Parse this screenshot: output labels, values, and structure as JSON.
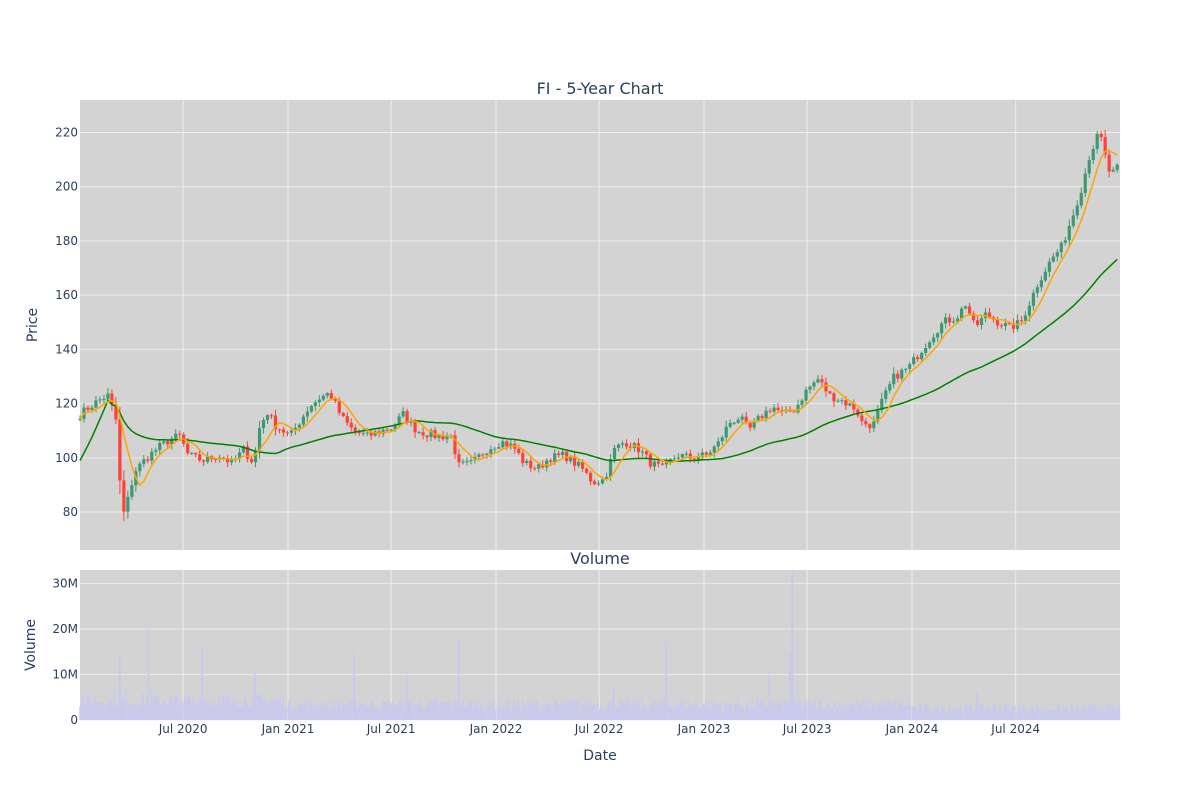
{
  "chart_data": {
    "type": "candlestick",
    "title": "FI - 5-Year Chart",
    "subplot_title": "Volume",
    "xlabel": "Date",
    "price_axis": {
      "label": "Price",
      "ticks": [
        80,
        100,
        120,
        140,
        160,
        180,
        200,
        220
      ],
      "range": [
        66,
        232
      ]
    },
    "volume_axis": {
      "label": "Volume",
      "ticks": [
        0,
        10000000,
        20000000,
        30000000
      ],
      "tick_labels": [
        "0",
        "10M",
        "20M",
        "30M"
      ],
      "range": [
        0,
        33000000
      ]
    },
    "x_ticks": [
      "Jul 2020",
      "Jan 2021",
      "Jul 2021",
      "Jan 2022",
      "Jul 2022",
      "Jan 2023",
      "Jul 2023",
      "Jan 2024",
      "Jul 2024"
    ],
    "x_tick_dates": [
      "2020-07-01",
      "2021-01-01",
      "2021-07-01",
      "2022-01-01",
      "2022-07-01",
      "2023-01-01",
      "2023-07-01",
      "2024-01-01",
      "2024-07-01"
    ],
    "x_range": [
      "2020-01-02",
      "2024-12-31"
    ],
    "grid": true,
    "legend": "none",
    "colors": {
      "up": "#3d9970",
      "down": "#ff4136",
      "ma_short": "#ffa500",
      "ma_long": "#008000",
      "volume": "#c8c8f0",
      "plot_bg": "#d3d3d3",
      "grid": "#ececec"
    },
    "price_path": [
      [
        "2020-01-02",
        116
      ],
      [
        "2020-01-20",
        119
      ],
      [
        "2020-02-10",
        122
      ],
      [
        "2020-02-21",
        123
      ],
      [
        "2020-03-05",
        114
      ],
      [
        "2020-03-16",
        78
      ],
      [
        "2020-03-23",
        82
      ],
      [
        "2020-04-07",
        95
      ],
      [
        "2020-04-28",
        100
      ],
      [
        "2020-05-20",
        104
      ],
      [
        "2020-06-10",
        107
      ],
      [
        "2020-06-25",
        108
      ],
      [
        "2020-07-10",
        101
      ],
      [
        "2020-08-05",
        99
      ],
      [
        "2020-09-01",
        101
      ],
      [
        "2020-09-25",
        98
      ],
      [
        "2020-10-15",
        103
      ],
      [
        "2020-11-02",
        98
      ],
      [
        "2020-11-10",
        110
      ],
      [
        "2020-11-25",
        117
      ],
      [
        "2020-12-10",
        112
      ],
      [
        "2021-01-05",
        108
      ],
      [
        "2021-01-20",
        113
      ],
      [
        "2021-02-08",
        119
      ],
      [
        "2021-02-25",
        122
      ],
      [
        "2021-03-15",
        124
      ],
      [
        "2021-04-05",
        115
      ],
      [
        "2021-04-25",
        110
      ],
      [
        "2021-05-20",
        108
      ],
      [
        "2021-06-15",
        110
      ],
      [
        "2021-07-01",
        111
      ],
      [
        "2021-07-22",
        116
      ],
      [
        "2021-08-15",
        110
      ],
      [
        "2021-09-20",
        108
      ],
      [
        "2021-10-15",
        108
      ],
      [
        "2021-10-27",
        97
      ],
      [
        "2021-11-20",
        98
      ],
      [
        "2021-12-15",
        103
      ],
      [
        "2022-01-10",
        106
      ],
      [
        "2022-02-01",
        104
      ],
      [
        "2022-02-20",
        98
      ],
      [
        "2022-03-15",
        96
      ],
      [
        "2022-04-05",
        100
      ],
      [
        "2022-05-01",
        101
      ],
      [
        "2022-06-01",
        96
      ],
      [
        "2022-06-20",
        91
      ],
      [
        "2022-07-10",
        92
      ],
      [
        "2022-07-28",
        103
      ],
      [
        "2022-08-15",
        106
      ],
      [
        "2022-09-10",
        103
      ],
      [
        "2022-09-30",
        98
      ],
      [
        "2022-10-20",
        96
      ],
      [
        "2022-11-15",
        101
      ],
      [
        "2022-12-10",
        100
      ],
      [
        "2023-01-05",
        101
      ],
      [
        "2023-01-25",
        105
      ],
      [
        "2023-02-15",
        113
      ],
      [
        "2023-03-05",
        115
      ],
      [
        "2023-03-20",
        110
      ],
      [
        "2023-04-10",
        115
      ],
      [
        "2023-05-01",
        119
      ],
      [
        "2023-05-20",
        116
      ],
      [
        "2023-06-10",
        118
      ],
      [
        "2023-06-30",
        125
      ],
      [
        "2023-07-20",
        129
      ],
      [
        "2023-08-10",
        123
      ],
      [
        "2023-09-01",
        121
      ],
      [
        "2023-09-25",
        118
      ],
      [
        "2023-10-05",
        113
      ],
      [
        "2023-10-25",
        112
      ],
      [
        "2023-11-10",
        121
      ],
      [
        "2023-12-01",
        130
      ],
      [
        "2023-12-25",
        133
      ],
      [
        "2024-01-15",
        139
      ],
      [
        "2024-02-05",
        145
      ],
      [
        "2024-02-25",
        150
      ],
      [
        "2024-03-20",
        152
      ],
      [
        "2024-04-05",
        157
      ],
      [
        "2024-04-20",
        148
      ],
      [
        "2024-05-10",
        153
      ],
      [
        "2024-06-01",
        150
      ],
      [
        "2024-06-20",
        148
      ],
      [
        "2024-07-10",
        150
      ],
      [
        "2024-07-25",
        157
      ],
      [
        "2024-08-10",
        165
      ],
      [
        "2024-09-01",
        173
      ],
      [
        "2024-09-20",
        178
      ],
      [
        "2024-10-10",
        190
      ],
      [
        "2024-10-25",
        200
      ],
      [
        "2024-11-08",
        212
      ],
      [
        "2024-11-25",
        220
      ],
      [
        "2024-12-02",
        214
      ],
      [
        "2024-12-10",
        206
      ],
      [
        "2024-12-20",
        205
      ],
      [
        "2024-12-31",
        208
      ]
    ],
    "volume_spikes": [
      [
        "2020-03-12",
        14000000
      ],
      [
        "2020-05-01",
        20000000
      ],
      [
        "2020-08-03",
        16000000
      ],
      [
        "2020-11-04",
        10500000
      ],
      [
        "2021-04-27",
        15000000
      ],
      [
        "2021-07-28",
        10000000
      ],
      [
        "2021-10-27",
        18000000
      ],
      [
        "2022-07-27",
        7500000
      ],
      [
        "2022-10-26",
        17000000
      ],
      [
        "2023-04-26",
        10000000
      ],
      [
        "2023-06-01",
        15000000
      ],
      [
        "2023-06-05",
        33000000
      ],
      [
        "2024-04-24",
        6000000
      ]
    ]
  }
}
